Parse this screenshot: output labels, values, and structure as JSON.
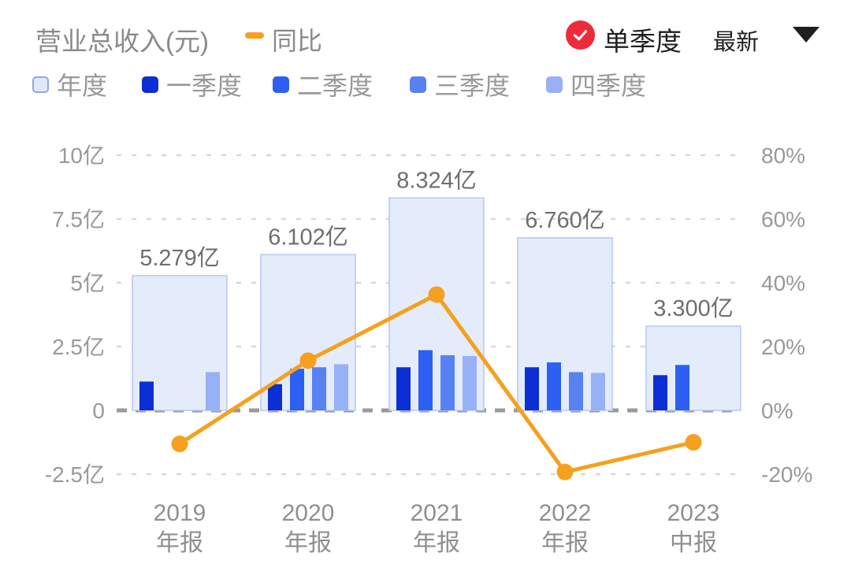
{
  "header": {
    "title": "营业总收入(元)",
    "yoy_legend_label": "同比",
    "single_quarter_label": "单季度",
    "latest_label": "最新"
  },
  "colors": {
    "orange_line": "#F5A01E",
    "red_check": "#ED2B3A",
    "annual_fill": "#E4ECFB",
    "annual_border": "#B7C7EE",
    "q1": "#0B2FD4",
    "q2": "#2D5FF2",
    "q3": "#5881F2",
    "q4": "#96B1F5",
    "grid_light": "#D8D8D8",
    "grid_zero": "#9A9A9A",
    "axis_text": "#999999",
    "bar_label_text": "#6E6E6E",
    "x_label_text": "#8F8F8F"
  },
  "bar_legend": [
    {
      "label": "年度",
      "fill": "#E0E9FA",
      "border": "#8FA8EA"
    },
    {
      "label": "一季度",
      "fill": "#0B2FD4",
      "border": "#0B2FD4"
    },
    {
      "label": "二季度",
      "fill": "#2D5FF2",
      "border": "#2D5FF2"
    },
    {
      "label": "三季度",
      "fill": "#5881F2",
      "border": "#5881F2"
    },
    {
      "label": "四季度",
      "fill": "#96B1F5",
      "border": "#96B1F5"
    }
  ],
  "chart_data": {
    "type": "bar+line",
    "categories": [
      "2019 年报",
      "2020 年报",
      "2021 年报",
      "2022 年报",
      "2023 中报"
    ],
    "category_lines": [
      [
        "2019",
        "年报"
      ],
      [
        "2020",
        "年报"
      ],
      [
        "2021",
        "年报"
      ],
      [
        "2022",
        "年报"
      ],
      [
        "2023",
        "中报"
      ]
    ],
    "annual_series": {
      "name": "年度",
      "values_yi": [
        5.279,
        6.102,
        8.324,
        6.76,
        3.3
      ],
      "labels": [
        "5.279亿",
        "6.102亿",
        "8.324亿",
        "6.760亿",
        "3.300亿"
      ]
    },
    "quarter_series": [
      {
        "name": "一季度",
        "slot": 0,
        "values_yi": [
          1.13,
          1.03,
          1.69,
          1.69,
          1.38
        ]
      },
      {
        "name": "二季度",
        "slot": 1,
        "values_yi": [
          null,
          1.63,
          2.36,
          1.88,
          1.78
        ]
      },
      {
        "name": "三季度",
        "slot": 2,
        "values_yi": [
          null,
          1.69,
          2.16,
          1.5,
          null
        ]
      },
      {
        "name": "四季度",
        "slot": 3,
        "values_yi": [
          1.5,
          1.81,
          2.13,
          1.47,
          null
        ]
      }
    ],
    "yoy_series": {
      "name": "同比",
      "values_pct": [
        -10.5,
        15.6,
        36.3,
        -19.3,
        -10.0
      ]
    },
    "left_axis": {
      "ticks": [
        "10亿",
        "7.5亿",
        "5亿",
        "2.5亿",
        "0",
        "-2.5亿"
      ],
      "values": [
        10,
        7.5,
        5,
        2.5,
        0,
        -2.5
      ]
    },
    "right_axis": {
      "ticks": [
        "80%",
        "60%",
        "40%",
        "20%",
        "0%",
        "-20%"
      ],
      "values": [
        80,
        60,
        40,
        20,
        0,
        -20
      ]
    },
    "ylim_left_yi": [
      -2.5,
      10
    ],
    "ylim_right_pct": [
      -20,
      80
    ],
    "grid": "dashed-horizontal",
    "legend_position": "top"
  }
}
